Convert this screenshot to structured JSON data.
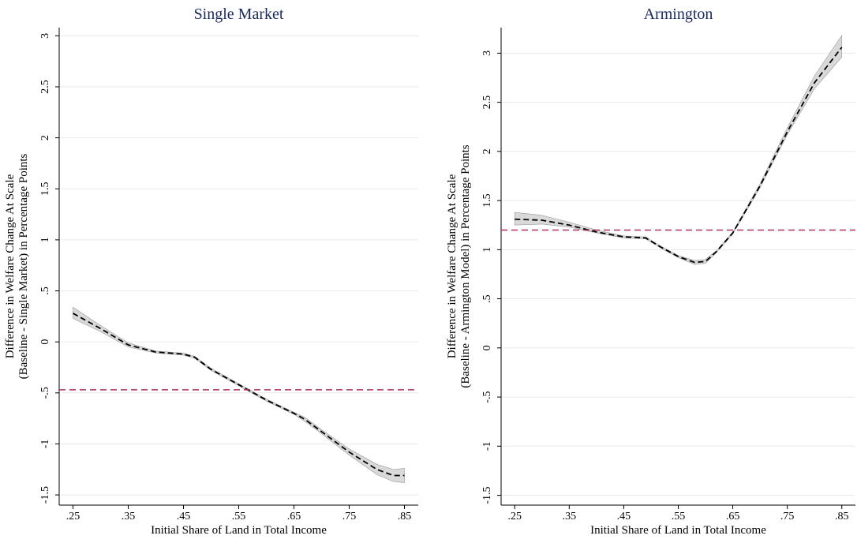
{
  "chart_data": [
    {
      "type": "line",
      "title": "Single Market",
      "xlabel": "Initial Share of Land in Total Income",
      "ylabel": [
        "Difference in Welfare Change At Scale",
        "(Baseline - Single Market) in Percentage Points"
      ],
      "x": [
        0.25,
        0.3,
        0.35,
        0.4,
        0.45,
        0.47,
        0.5,
        0.55,
        0.6,
        0.65,
        0.67,
        0.7,
        0.75,
        0.8,
        0.83,
        0.85
      ],
      "series": [
        {
          "color": "#000000",
          "values": [
            0.28,
            0.13,
            -0.03,
            -0.1,
            -0.12,
            -0.15,
            -0.27,
            -0.42,
            -0.57,
            -0.7,
            -0.76,
            -0.88,
            -1.08,
            -1.25,
            -1.31,
            -1.31
          ],
          "band_lower": [
            0.23,
            0.1,
            -0.05,
            -0.11,
            -0.13,
            -0.16,
            -0.28,
            -0.43,
            -0.58,
            -0.71,
            -0.78,
            -0.9,
            -1.11,
            -1.3,
            -1.37,
            -1.38
          ],
          "band_upper": [
            0.34,
            0.16,
            -0.01,
            -0.09,
            -0.11,
            -0.14,
            -0.26,
            -0.41,
            -0.56,
            -0.69,
            -0.74,
            -0.86,
            -1.05,
            -1.2,
            -1.25,
            -1.24
          ]
        }
      ],
      "reference_line": {
        "value": -0.47,
        "color": "#b03060"
      },
      "band_color": "#d9d9d9",
      "xlim": [
        0.225,
        0.875
      ],
      "ylim": [
        -1.6,
        3.08
      ],
      "xticks": [
        {
          "value": 0.25,
          "label": ".25"
        },
        {
          "value": 0.35,
          "label": ".35"
        },
        {
          "value": 0.45,
          "label": ".45"
        },
        {
          "value": 0.55,
          "label": ".55"
        },
        {
          "value": 0.65,
          "label": ".65"
        },
        {
          "value": 0.75,
          "label": ".75"
        },
        {
          "value": 0.85,
          "label": ".85"
        }
      ],
      "yticks": [
        -1.5,
        -1,
        {
          "value": -0.5,
          "label": "-.5"
        },
        0,
        {
          "value": 0.5,
          "label": ".5"
        },
        1,
        1.5,
        2,
        2.5,
        3
      ],
      "grid": true
    },
    {
      "type": "line",
      "title": "Armington",
      "xlabel": "Initial Share of Land in Total Income",
      "ylabel": [
        "Difference in Welfare Change At Scale",
        "(Baseline - Armington Model) in Percentage Points"
      ],
      "x": [
        0.25,
        0.3,
        0.35,
        0.4,
        0.45,
        0.49,
        0.52,
        0.55,
        0.58,
        0.6,
        0.62,
        0.65,
        0.7,
        0.75,
        0.8,
        0.85
      ],
      "series": [
        {
          "color": "#000000",
          "values": [
            1.31,
            1.3,
            1.25,
            1.18,
            1.13,
            1.12,
            1.02,
            0.93,
            0.87,
            0.88,
            0.98,
            1.17,
            1.65,
            2.2,
            2.7,
            3.06
          ],
          "band_lower": [
            1.25,
            1.26,
            1.23,
            1.17,
            1.12,
            1.11,
            1.01,
            0.92,
            0.85,
            0.86,
            0.97,
            1.16,
            1.63,
            2.17,
            2.64,
            2.96
          ],
          "band_upper": [
            1.38,
            1.35,
            1.28,
            1.2,
            1.14,
            1.13,
            1.03,
            0.94,
            0.89,
            0.9,
            0.99,
            1.18,
            1.67,
            2.24,
            2.77,
            3.18
          ]
        }
      ],
      "reference_line": {
        "value": 1.2,
        "color": "#b03060"
      },
      "band_color": "#d9d9d9",
      "xlim": [
        0.225,
        0.875
      ],
      "ylim": [
        -1.6,
        3.26
      ],
      "xticks": [
        {
          "value": 0.25,
          "label": ".25"
        },
        {
          "value": 0.35,
          "label": ".35"
        },
        {
          "value": 0.45,
          "label": ".45"
        },
        {
          "value": 0.55,
          "label": ".55"
        },
        {
          "value": 0.65,
          "label": ".65"
        },
        {
          "value": 0.75,
          "label": ".75"
        },
        {
          "value": 0.85,
          "label": ".85"
        }
      ],
      "yticks": [
        -1.5,
        -1,
        {
          "value": -0.5,
          "label": "-.5"
        },
        0,
        {
          "value": 0.5,
          "label": ".5"
        },
        1,
        1.5,
        2,
        2.5,
        3
      ],
      "grid": true
    }
  ]
}
